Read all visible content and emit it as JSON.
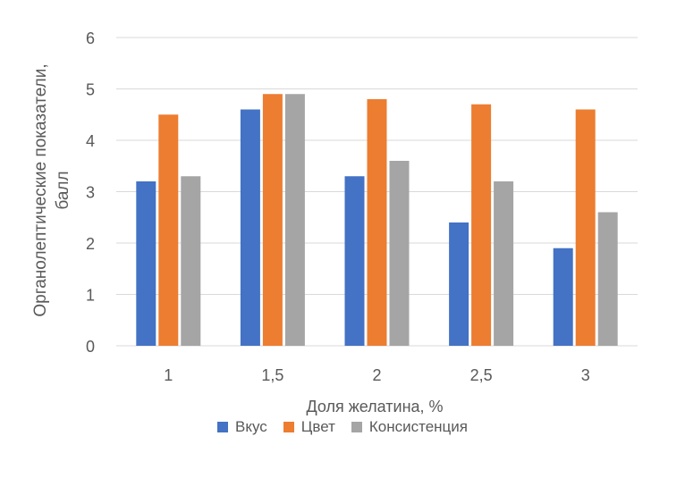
{
  "chart_data": {
    "type": "bar",
    "title": "",
    "xlabel": "Доля желатина, %",
    "ylabel": "Органолептические показатели, балл",
    "ylabel_lines": [
      "Органолептические показатели,",
      "балл"
    ],
    "categories": [
      "1",
      "1,5",
      "2",
      "2,5",
      "3"
    ],
    "yticks": [
      "0",
      "1",
      "2",
      "3",
      "4",
      "5",
      "6"
    ],
    "ylim": [
      0,
      6
    ],
    "grid": true,
    "legend": "bottom",
    "series": [
      {
        "name": "Вкус",
        "color": "#4472C4",
        "values": [
          3.2,
          4.6,
          3.3,
          2.4,
          1.9
        ]
      },
      {
        "name": "Цвет",
        "color": "#ED7D31",
        "values": [
          4.5,
          4.9,
          4.8,
          4.7,
          4.6
        ]
      },
      {
        "name": "Консистенция",
        "color": "#A5A5A5",
        "values": [
          3.3,
          4.9,
          3.6,
          3.2,
          2.6
        ]
      }
    ]
  }
}
